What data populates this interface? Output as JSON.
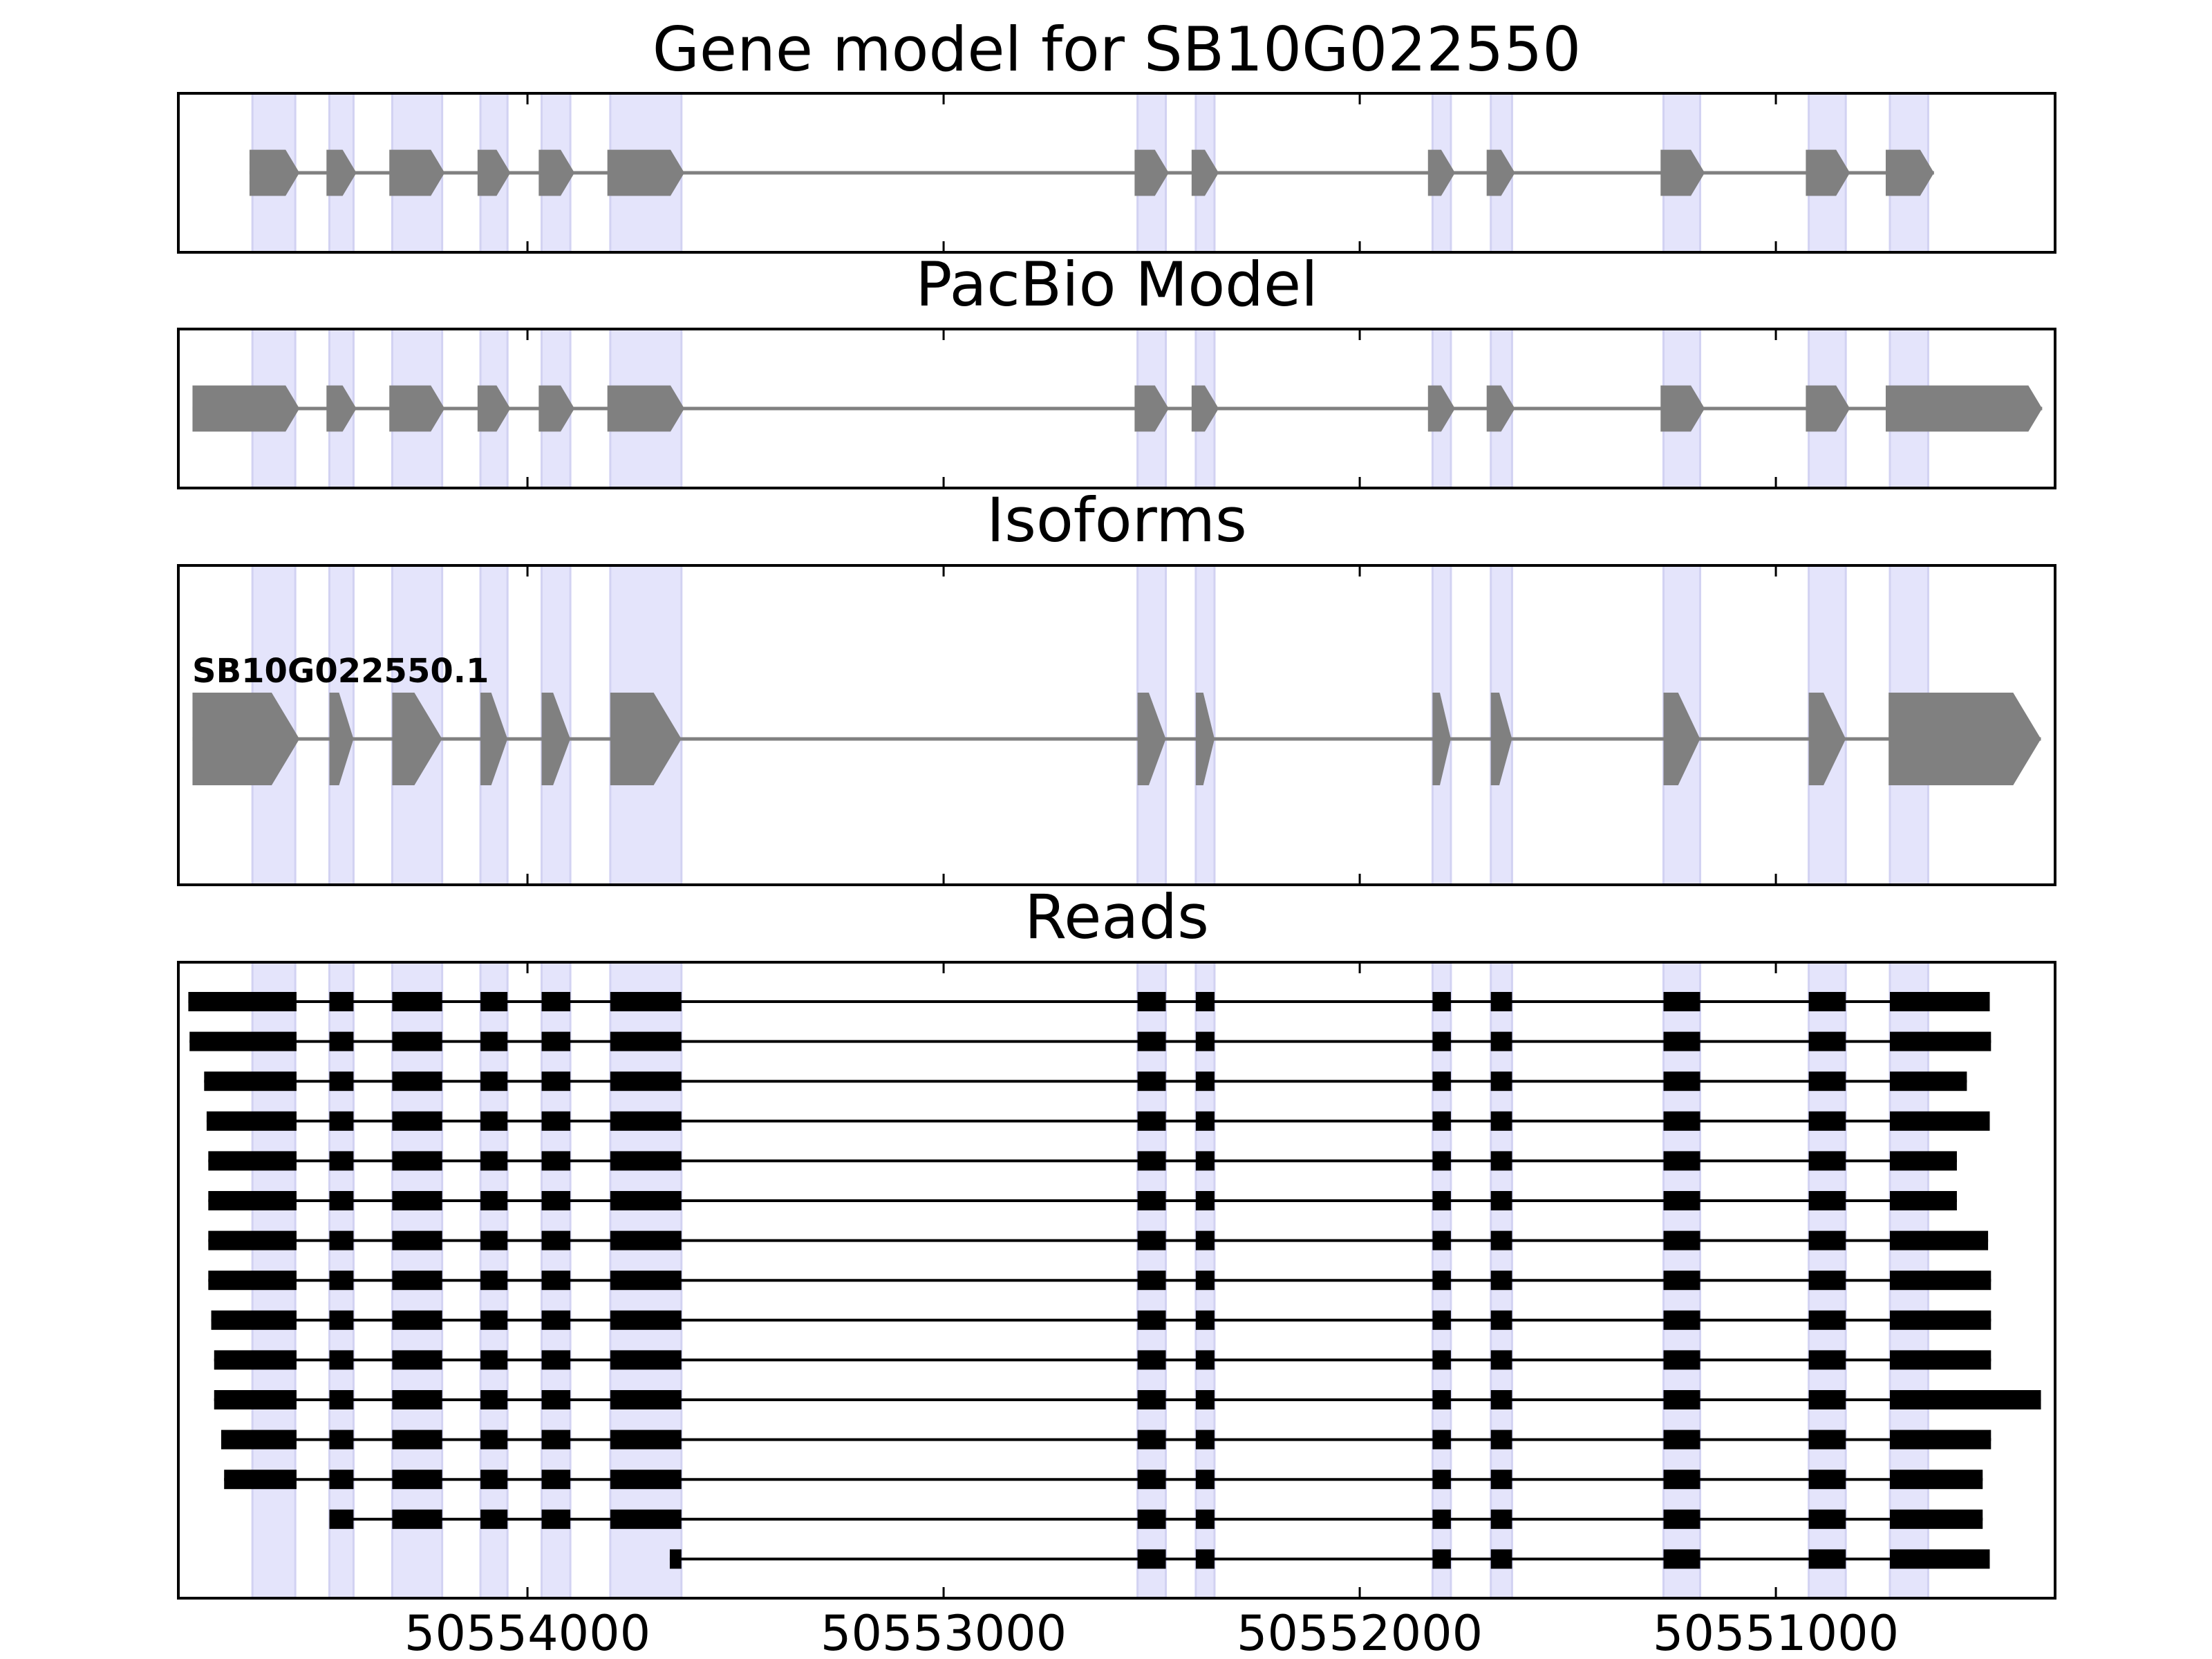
{
  "exon_highlights": [
    [
      50554661,
      50554558
    ],
    [
      50554476,
      50554418
    ],
    [
      50554325,
      50554205
    ],
    [
      50554113,
      50554048
    ],
    [
      50553966,
      50553897
    ],
    [
      50553801,
      50553630
    ],
    [
      50552534,
      50552466
    ],
    [
      50552394,
      50552349
    ],
    [
      50551825,
      50551781
    ],
    [
      50551685,
      50551634
    ],
    [
      50551270,
      50551182
    ],
    [
      50550921,
      50550832
    ],
    [
      50550726,
      50550634
    ]
  ],
  "chart_data": [
    {
      "type": "gene_model",
      "title": "Gene model for SB10G022550",
      "xlim": [
        50554839,
        50550329
      ],
      "xticks": [
        50554000,
        50553000,
        50552000,
        50551000
      ],
      "color": "#808080",
      "transcripts": [
        {
          "exons": [
            [
              50554668,
              50554548
            ],
            [
              50554483,
              50554411
            ],
            [
              50554332,
              50554199
            ],
            [
              50554120,
              50554041
            ],
            [
              50553973,
              50553887
            ],
            [
              50553808,
              50553623
            ],
            [
              50552541,
              50552459
            ],
            [
              50552404,
              50552339
            ],
            [
              50551836,
              50551771
            ],
            [
              50551695,
              50551627
            ],
            [
              50551277,
              50551171
            ],
            [
              50550928,
              50550822
            ],
            [
              50550736,
              50550620
            ]
          ]
        }
      ]
    },
    {
      "type": "gene_model",
      "title": "PacBio Model",
      "xlim": [
        50554839,
        50550329
      ],
      "xticks": [
        50554000,
        50553000,
        50552000,
        50551000
      ],
      "color": "#808080",
      "transcripts": [
        {
          "exons": [
            [
              50554805,
              50554548
            ],
            [
              50554483,
              50554411
            ],
            [
              50554332,
              50554199
            ],
            [
              50554120,
              50554041
            ],
            [
              50553973,
              50553887
            ],
            [
              50553808,
              50553623
            ],
            [
              50552541,
              50552459
            ],
            [
              50552404,
              50552339
            ],
            [
              50551836,
              50551771
            ],
            [
              50551695,
              50551627
            ],
            [
              50551277,
              50551171
            ],
            [
              50550928,
              50550822
            ],
            [
              50550736,
              50550360
            ]
          ]
        }
      ]
    },
    {
      "type": "gene_model",
      "title": "Isoforms",
      "xlim": [
        50554839,
        50550329
      ],
      "xticks": [
        50554000,
        50553000,
        50552000,
        50551000
      ],
      "color": "#808080",
      "transcripts": [
        {
          "name": "SB10G022550.1",
          "exons": [
            [
              50554805,
              50554548
            ],
            [
              50554476,
              50554418
            ],
            [
              50554325,
              50554205
            ],
            [
              50554113,
              50554048
            ],
            [
              50553966,
              50553897
            ],
            [
              50553801,
              50553630
            ],
            [
              50552534,
              50552466
            ],
            [
              50552394,
              50552349
            ],
            [
              50551825,
              50551781
            ],
            [
              50551685,
              50551634
            ],
            [
              50551270,
              50551182
            ],
            [
              50550921,
              50550832
            ],
            [
              50550729,
              50550363
            ]
          ]
        }
      ]
    },
    {
      "type": "reads",
      "title": "Reads",
      "xlim": [
        50554839,
        50550329
      ],
      "xticks": [
        50554000,
        50553000,
        50552000,
        50551000
      ],
      "color": "#000000",
      "reads": [
        [
          [
            50554815,
            50554555
          ],
          [
            50554476,
            50554418
          ],
          [
            50554325,
            50554205
          ],
          [
            50554113,
            50554048
          ],
          [
            50553966,
            50553897
          ],
          [
            50553801,
            50553630
          ],
          [
            50552534,
            50552466
          ],
          [
            50552394,
            50552349
          ],
          [
            50551825,
            50551781
          ],
          [
            50551685,
            50551634
          ],
          [
            50551270,
            50551182
          ],
          [
            50550921,
            50550832
          ],
          [
            50550726,
            50550486
          ]
        ],
        [
          [
            50554812,
            50554555
          ],
          [
            50554476,
            50554418
          ],
          [
            50554325,
            50554205
          ],
          [
            50554113,
            50554048
          ],
          [
            50553966,
            50553897
          ],
          [
            50553801,
            50553630
          ],
          [
            50552534,
            50552466
          ],
          [
            50552394,
            50552349
          ],
          [
            50551825,
            50551781
          ],
          [
            50551685,
            50551634
          ],
          [
            50551270,
            50551182
          ],
          [
            50550921,
            50550832
          ],
          [
            50550726,
            50550483
          ]
        ],
        [
          [
            50554777,
            50554555
          ],
          [
            50554476,
            50554418
          ],
          [
            50554325,
            50554205
          ],
          [
            50554113,
            50554048
          ],
          [
            50553966,
            50553897
          ],
          [
            50553801,
            50553630
          ],
          [
            50552534,
            50552466
          ],
          [
            50552394,
            50552349
          ],
          [
            50551825,
            50551781
          ],
          [
            50551685,
            50551634
          ],
          [
            50551270,
            50551182
          ],
          [
            50550921,
            50550832
          ],
          [
            50550726,
            50550541
          ]
        ],
        [
          [
            50554771,
            50554555
          ],
          [
            50554476,
            50554418
          ],
          [
            50554325,
            50554205
          ],
          [
            50554113,
            50554048
          ],
          [
            50553966,
            50553897
          ],
          [
            50553801,
            50553630
          ],
          [
            50552534,
            50552466
          ],
          [
            50552394,
            50552349
          ],
          [
            50551825,
            50551781
          ],
          [
            50551685,
            50551634
          ],
          [
            50551270,
            50551182
          ],
          [
            50550921,
            50550832
          ],
          [
            50550726,
            50550486
          ]
        ],
        [
          [
            50554767,
            50554555
          ],
          [
            50554476,
            50554418
          ],
          [
            50554325,
            50554205
          ],
          [
            50554113,
            50554048
          ],
          [
            50553966,
            50553897
          ],
          [
            50553801,
            50553630
          ],
          [
            50552534,
            50552466
          ],
          [
            50552394,
            50552349
          ],
          [
            50551825,
            50551781
          ],
          [
            50551685,
            50551634
          ],
          [
            50551270,
            50551182
          ],
          [
            50550921,
            50550832
          ],
          [
            50550726,
            50550565
          ]
        ],
        [
          [
            50554767,
            50554555
          ],
          [
            50554476,
            50554418
          ],
          [
            50554325,
            50554205
          ],
          [
            50554113,
            50554048
          ],
          [
            50553966,
            50553897
          ],
          [
            50553801,
            50553630
          ],
          [
            50552534,
            50552466
          ],
          [
            50552394,
            50552349
          ],
          [
            50551825,
            50551781
          ],
          [
            50551685,
            50551634
          ],
          [
            50551270,
            50551182
          ],
          [
            50550921,
            50550832
          ],
          [
            50550726,
            50550565
          ]
        ],
        [
          [
            50554767,
            50554555
          ],
          [
            50554476,
            50554418
          ],
          [
            50554325,
            50554205
          ],
          [
            50554113,
            50554048
          ],
          [
            50553966,
            50553897
          ],
          [
            50553801,
            50553630
          ],
          [
            50552534,
            50552466
          ],
          [
            50552394,
            50552349
          ],
          [
            50551825,
            50551781
          ],
          [
            50551685,
            50551634
          ],
          [
            50551270,
            50551182
          ],
          [
            50550921,
            50550832
          ],
          [
            50550726,
            50550490
          ]
        ],
        [
          [
            50554767,
            50554555
          ],
          [
            50554476,
            50554418
          ],
          [
            50554325,
            50554205
          ],
          [
            50554113,
            50554048
          ],
          [
            50553966,
            50553897
          ],
          [
            50553801,
            50553630
          ],
          [
            50552534,
            50552466
          ],
          [
            50552394,
            50552349
          ],
          [
            50551825,
            50551781
          ],
          [
            50551685,
            50551634
          ],
          [
            50551270,
            50551182
          ],
          [
            50550921,
            50550832
          ],
          [
            50550726,
            50550483
          ]
        ],
        [
          [
            50554760,
            50554555
          ],
          [
            50554476,
            50554418
          ],
          [
            50554325,
            50554205
          ],
          [
            50554113,
            50554048
          ],
          [
            50553966,
            50553897
          ],
          [
            50553801,
            50553630
          ],
          [
            50552534,
            50552466
          ],
          [
            50552394,
            50552349
          ],
          [
            50551825,
            50551781
          ],
          [
            50551685,
            50551634
          ],
          [
            50551270,
            50551182
          ],
          [
            50550921,
            50550832
          ],
          [
            50550726,
            50550483
          ]
        ],
        [
          [
            50554753,
            50554555
          ],
          [
            50554476,
            50554418
          ],
          [
            50554325,
            50554205
          ],
          [
            50554113,
            50554048
          ],
          [
            50553966,
            50553897
          ],
          [
            50553801,
            50553630
          ],
          [
            50552534,
            50552466
          ],
          [
            50552394,
            50552349
          ],
          [
            50551825,
            50551781
          ],
          [
            50551685,
            50551634
          ],
          [
            50551270,
            50551182
          ],
          [
            50550921,
            50550832
          ],
          [
            50550726,
            50550483
          ]
        ],
        [
          [
            50554753,
            50554555
          ],
          [
            50554476,
            50554418
          ],
          [
            50554325,
            50554205
          ],
          [
            50554113,
            50554048
          ],
          [
            50553966,
            50553897
          ],
          [
            50553801,
            50553630
          ],
          [
            50552534,
            50552466
          ],
          [
            50552394,
            50552349
          ],
          [
            50551825,
            50551781
          ],
          [
            50551685,
            50551634
          ],
          [
            50551270,
            50551182
          ],
          [
            50550921,
            50550832
          ],
          [
            50550726,
            50550363
          ]
        ],
        [
          [
            50554736,
            50554555
          ],
          [
            50554476,
            50554418
          ],
          [
            50554325,
            50554205
          ],
          [
            50554113,
            50554048
          ],
          [
            50553966,
            50553897
          ],
          [
            50553801,
            50553630
          ],
          [
            50552534,
            50552466
          ],
          [
            50552394,
            50552349
          ],
          [
            50551825,
            50551781
          ],
          [
            50551685,
            50551634
          ],
          [
            50551270,
            50551182
          ],
          [
            50550921,
            50550832
          ],
          [
            50550726,
            50550483
          ]
        ],
        [
          [
            50554729,
            50554555
          ],
          [
            50554476,
            50554418
          ],
          [
            50554325,
            50554205
          ],
          [
            50554113,
            50554048
          ],
          [
            50553966,
            50553897
          ],
          [
            50553801,
            50553630
          ],
          [
            50552534,
            50552466
          ],
          [
            50552394,
            50552349
          ],
          [
            50551825,
            50551781
          ],
          [
            50551685,
            50551634
          ],
          [
            50551270,
            50551182
          ],
          [
            50550921,
            50550832
          ],
          [
            50550726,
            50550503
          ]
        ],
        [
          [
            50554476,
            50554418
          ],
          [
            50554325,
            50554205
          ],
          [
            50554113,
            50554048
          ],
          [
            50553966,
            50553897
          ],
          [
            50553801,
            50553630
          ],
          [
            50552534,
            50552466
          ],
          [
            50552394,
            50552349
          ],
          [
            50551825,
            50551781
          ],
          [
            50551685,
            50551634
          ],
          [
            50551270,
            50551182
          ],
          [
            50550921,
            50550832
          ],
          [
            50550726,
            50550503
          ]
        ],
        [
          [
            50553658,
            50553630
          ],
          [
            50552534,
            50552466
          ],
          [
            50552394,
            50552349
          ],
          [
            50551825,
            50551781
          ],
          [
            50551685,
            50551634
          ],
          [
            50551270,
            50551182
          ],
          [
            50550921,
            50550832
          ],
          [
            50550726,
            50550486
          ]
        ]
      ]
    }
  ]
}
